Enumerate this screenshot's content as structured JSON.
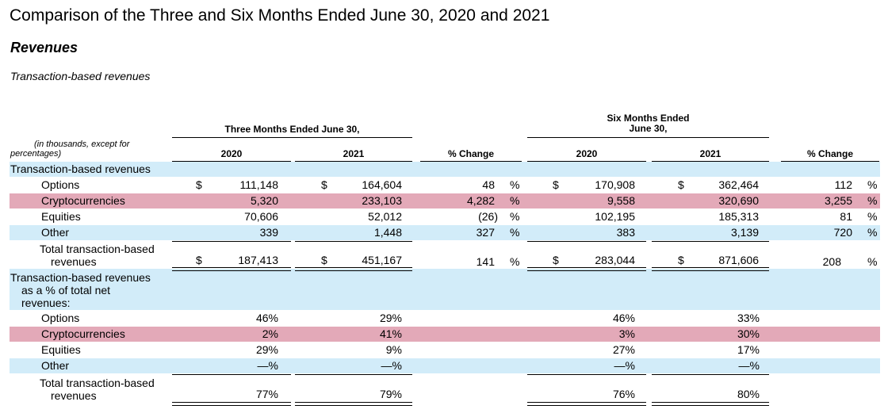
{
  "page": {
    "title": "Comparison of the Three and Six Months Ended June 30, 2020 and 2021",
    "section": "Revenues",
    "subsection": "Transaction-based revenues"
  },
  "table": {
    "unit_note": [
      "(in thousands, except for",
      "percentages)"
    ],
    "group_three": "Three Months Ended June 30,",
    "group_six": [
      "Six Months Ended",
      "June 30,"
    ],
    "col_headers": [
      "2020",
      "2021",
      "% Change",
      "2020",
      "2021",
      "% Change"
    ],
    "currency": "$",
    "pct": "%",
    "section1_title": "Transaction-based revenues",
    "rows1": [
      {
        "label": "Options",
        "v": [
          "111,148",
          "164,604",
          "48",
          "170,908",
          "362,464",
          "112"
        ]
      },
      {
        "label": "Cryptocurrencies",
        "v": [
          "5,320",
          "233,103",
          "4,282",
          "9,558",
          "320,690",
          "3,255"
        ]
      },
      {
        "label": "Equities",
        "v": [
          "70,606",
          "52,012",
          "(26)",
          "102,195",
          "185,313",
          "81"
        ]
      },
      {
        "label": "Other",
        "v": [
          "339",
          "1,448",
          "327",
          "383",
          "3,139",
          "720"
        ]
      }
    ],
    "total1": {
      "label": [
        "Total transaction-based",
        "revenues"
      ],
      "v": [
        "187,413",
        "451,167",
        "141",
        "283,044",
        "871,606",
        "208"
      ]
    },
    "section2_title": [
      "Transaction-based revenues",
      "as a % of total net",
      "revenues:"
    ],
    "rows2": [
      {
        "label": "Options",
        "v": [
          "46%",
          "29%",
          "46%",
          "33%"
        ]
      },
      {
        "label": "Cryptocurrencies",
        "v": [
          "2%",
          "41%",
          "3%",
          "30%"
        ]
      },
      {
        "label": "Equities",
        "v": [
          "29%",
          "9%",
          "27%",
          "17%"
        ]
      },
      {
        "label": "Other",
        "v": [
          "—%",
          "—%",
          "—%",
          "—%"
        ]
      }
    ],
    "total2": {
      "label": [
        "Total transaction-based",
        "revenues"
      ],
      "v": [
        "77%",
        "79%",
        "76%",
        "80%"
      ]
    }
  }
}
